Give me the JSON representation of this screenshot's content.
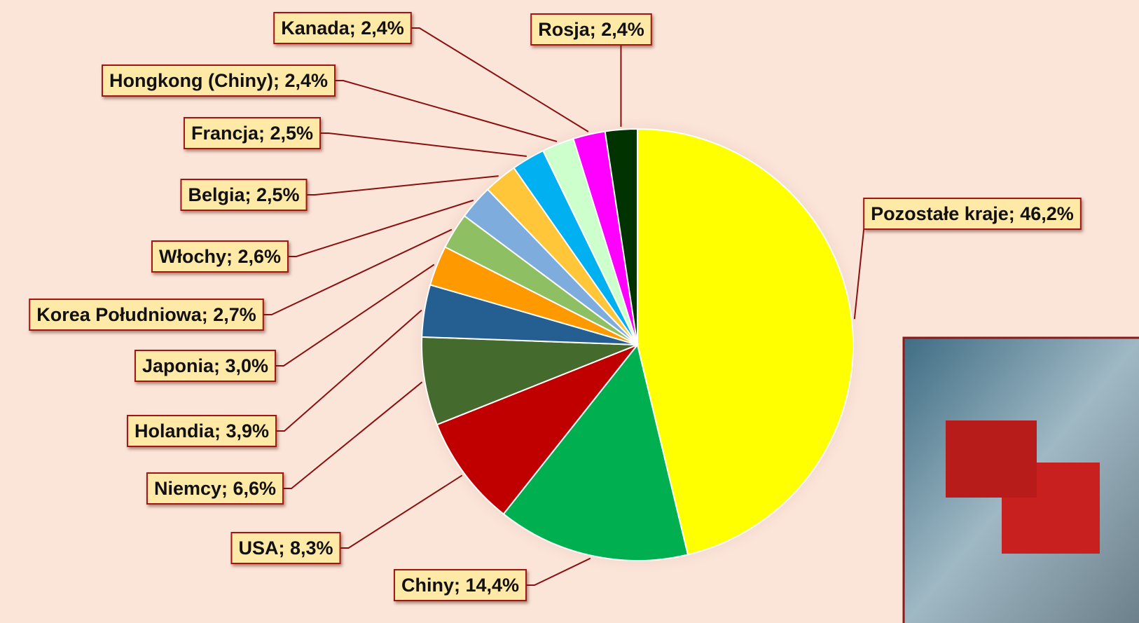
{
  "chart_data": {
    "type": "pie",
    "values": [
      46.2,
      14.4,
      8.3,
      6.6,
      3.9,
      3.0,
      2.7,
      2.6,
      2.5,
      2.5,
      2.4,
      2.4,
      2.4
    ],
    "value_labels": [
      "Pozostałe kraje; 46,2%",
      "Chiny; 14,4%",
      "USA; 8,3%",
      "Niemcy; 6,6%",
      "Holandia; 3,9%",
      "Japonia; 3,0%",
      "Korea Południowa; 2,7%",
      "Włochy; 2,6%",
      "Belgia; 2,5%",
      "Francja; 2,5%",
      "Hongkong (Chiny); 2,4%",
      "Kanada; 2,4%",
      "Rosja; 2,4%"
    ],
    "colors": [
      "#ffff00",
      "#00b050",
      "#c00000",
      "#456a2e",
      "#255e91",
      "#ff9900",
      "#8fbf63",
      "#7eaddd",
      "#ffc63a",
      "#00b0f0",
      "#ccffcc",
      "#ff00ff",
      "#003300"
    ]
  }
}
